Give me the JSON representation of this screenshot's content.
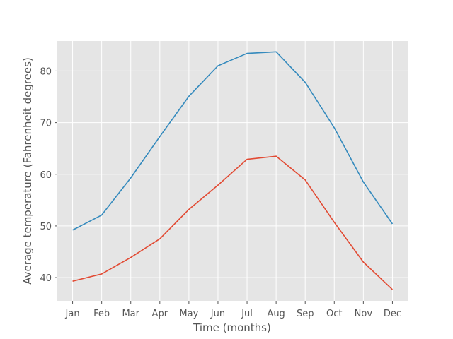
{
  "chart_data": {
    "type": "line",
    "style": "ggplot",
    "categories": [
      "Jan",
      "Feb",
      "Mar",
      "Apr",
      "May",
      "Jun",
      "Jul",
      "Aug",
      "Sep",
      "Oct",
      "Nov",
      "Dec"
    ],
    "series": [
      {
        "values": [
          49.2,
          52.1,
          59.3,
          67.3,
          75.1,
          81.0,
          83.4,
          83.7,
          77.8,
          69.0,
          58.5,
          50.4
        ],
        "color": "#348ABD"
      },
      {
        "values": [
          39.3,
          40.7,
          43.9,
          47.5,
          53.2,
          57.9,
          62.9,
          63.5,
          58.9,
          50.7,
          43.0,
          37.7
        ],
        "color": "#E24A33"
      }
    ],
    "title": "",
    "xlabel": "Time (months)",
    "ylabel": "Average temperature (Fahrenheit degrees)",
    "ylim": [
      35.5,
      85.8
    ],
    "yticks": [
      40,
      50,
      60,
      70,
      80
    ],
    "grid": true,
    "legend": "none"
  }
}
